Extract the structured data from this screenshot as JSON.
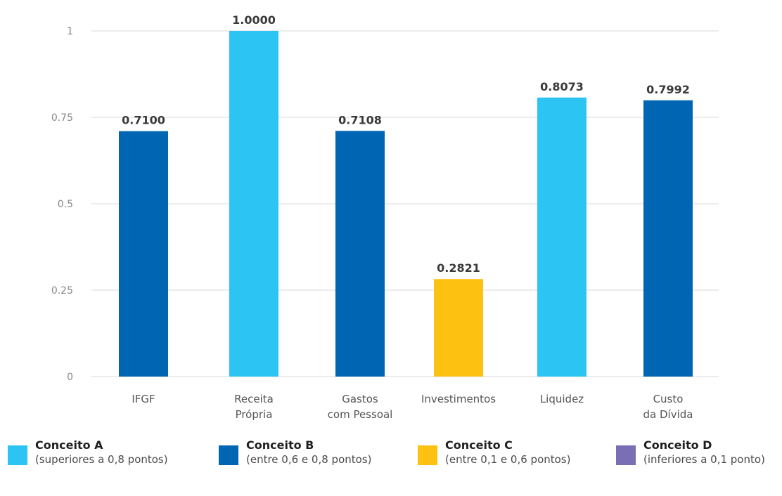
{
  "chart_data": {
    "type": "bar",
    "categories": [
      [
        "IFGF"
      ],
      [
        "Receita",
        "Própria"
      ],
      [
        "Gastos",
        "com Pessoal"
      ],
      [
        "Investimentos"
      ],
      [
        "Liquidez"
      ],
      [
        "Custo",
        "da Dívida"
      ]
    ],
    "values": [
      0.71,
      1.0,
      0.7108,
      0.2821,
      0.8073,
      0.7992
    ],
    "data_labels": [
      "0.7100",
      "1.0000",
      "0.7108",
      "0.2821",
      "0.8073",
      "0.7992"
    ],
    "bar_concepts": [
      "B",
      "A",
      "B",
      "C",
      "A",
      "B"
    ],
    "ylim": [
      0,
      1
    ],
    "yticks": [
      0,
      0.25,
      0.5,
      0.75,
      1
    ],
    "ytick_labels": [
      "0",
      "0.25",
      "0.5",
      "0.75",
      "1"
    ],
    "grid": true,
    "legend_position": "bottom"
  },
  "colors": {
    "A": "#2bc4f3",
    "B": "#0066b3",
    "C": "#fdc111",
    "D": "#7a6fb4",
    "grid": "#d9d9d9"
  },
  "legend": [
    {
      "key": "A",
      "title": "Conceito A",
      "desc": "(superiores a 0,8 pontos)"
    },
    {
      "key": "B",
      "title": "Conceito B",
      "desc": "(entre 0,6 e 0,8 pontos)"
    },
    {
      "key": "C",
      "title": "Conceito C",
      "desc": "(entre 0,1 e 0,6 pontos)"
    },
    {
      "key": "D",
      "title": "Conceito D",
      "desc": "(inferiores a 0,1 ponto)"
    }
  ]
}
